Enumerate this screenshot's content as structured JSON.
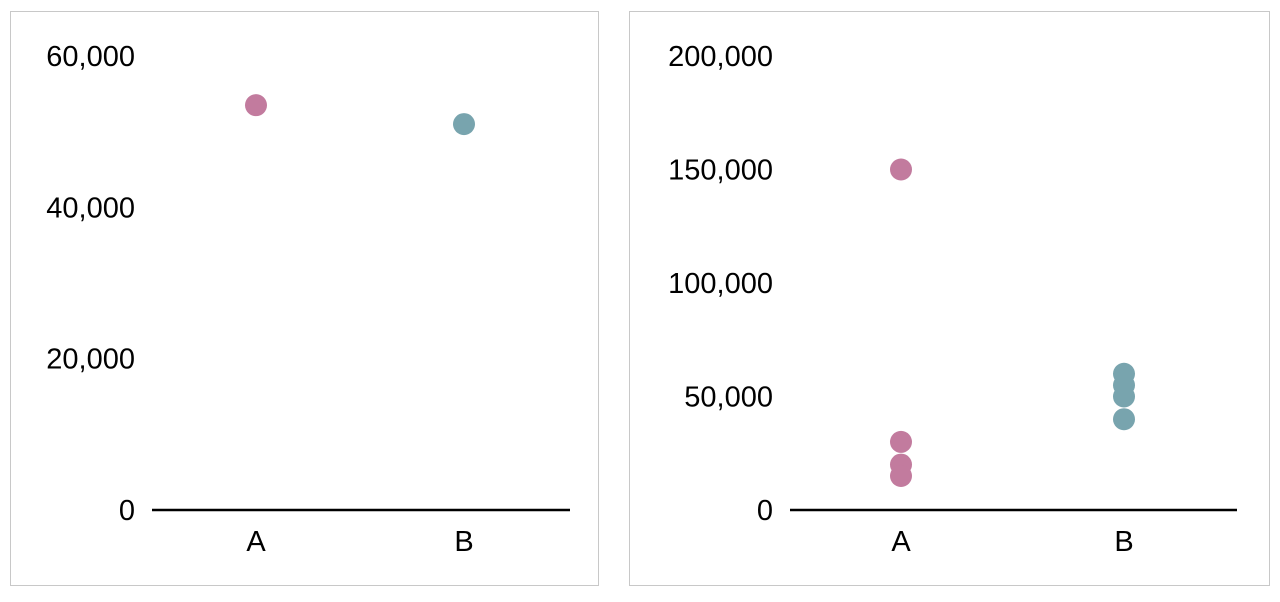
{
  "colors": {
    "A": "#c27b9e",
    "B": "#78a4ae",
    "axis": "#000000",
    "border": "#c8c8c8"
  },
  "chart_data": [
    {
      "type": "scatter",
      "title": "",
      "xlabel": "",
      "ylabel": "",
      "categories": [
        "A",
        "B"
      ],
      "ylim": [
        0,
        60000
      ],
      "yticks": [
        0,
        20000,
        40000,
        60000
      ],
      "ytick_labels": [
        "0",
        "20,000",
        "40,000",
        "60,000"
      ],
      "grid": false,
      "series": [
        {
          "category": "A",
          "values": [
            53500
          ]
        },
        {
          "category": "B",
          "values": [
            51000
          ]
        }
      ]
    },
    {
      "type": "scatter",
      "title": "",
      "xlabel": "",
      "ylabel": "",
      "categories": [
        "A",
        "B"
      ],
      "ylim": [
        0,
        200000
      ],
      "yticks": [
        0,
        50000,
        100000,
        150000,
        200000
      ],
      "ytick_labels": [
        "0",
        "50,000",
        "100,000",
        "150,000",
        "200,000"
      ],
      "grid": false,
      "series": [
        {
          "category": "A",
          "values": [
            150000,
            30000,
            20000,
            15000
          ]
        },
        {
          "category": "B",
          "values": [
            60000,
            55000,
            50000,
            40000
          ]
        }
      ]
    }
  ]
}
